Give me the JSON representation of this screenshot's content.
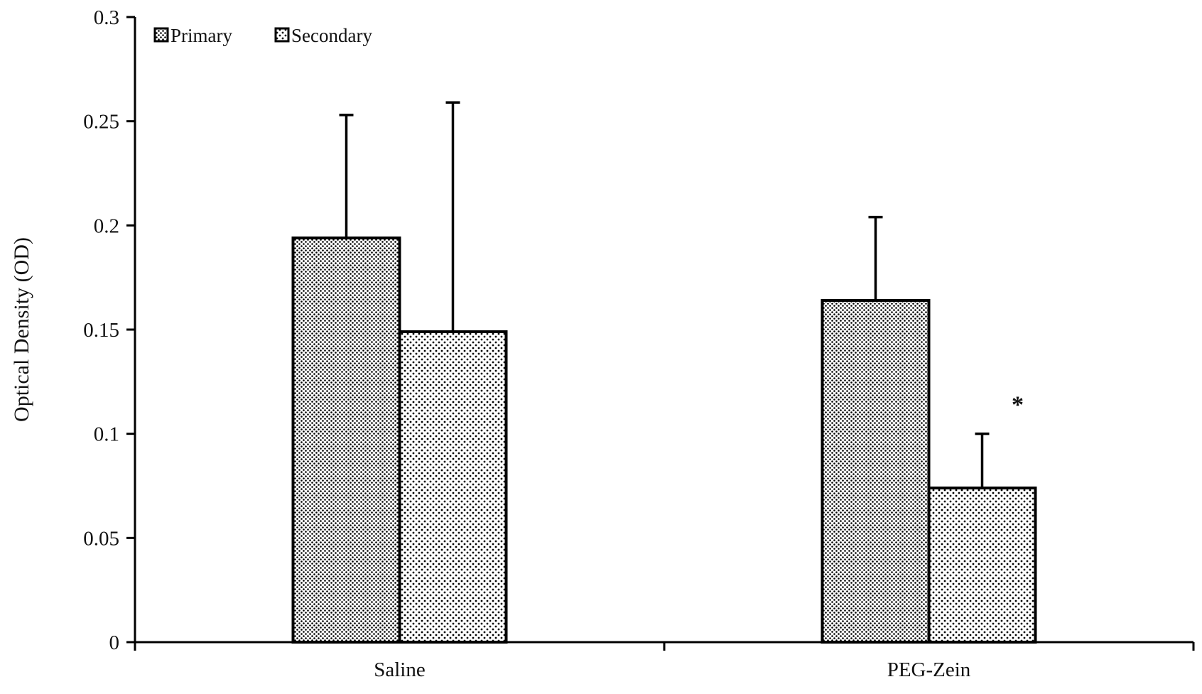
{
  "chart_data": {
    "type": "bar",
    "title": "",
    "xlabel": "",
    "ylabel": "Optical Density (OD)",
    "ylim": [
      0,
      0.3
    ],
    "yticks": [
      "0",
      "0.05",
      "0.1",
      "0.15",
      "0.2",
      "0.25",
      "0.3"
    ],
    "categories": [
      "Saline",
      "PEG-Zein"
    ],
    "series": [
      {
        "name": "Primary",
        "values": [
          0.194,
          0.164
        ],
        "errors": [
          0.059,
          0.04
        ],
        "pattern": "dense-dots"
      },
      {
        "name": "Secondary",
        "values": [
          0.149,
          0.074
        ],
        "errors": [
          0.11,
          0.026
        ],
        "pattern": "sparse-dots"
      }
    ],
    "legend": {
      "position": "top-left"
    },
    "grid": false,
    "annotations": [
      {
        "text": "*",
        "category": "PEG-Zein",
        "series": "Secondary",
        "y": 0.115
      }
    ],
    "colors": {
      "bar_stroke": "#000000",
      "axis": "#000000",
      "background": "#ffffff"
    }
  }
}
